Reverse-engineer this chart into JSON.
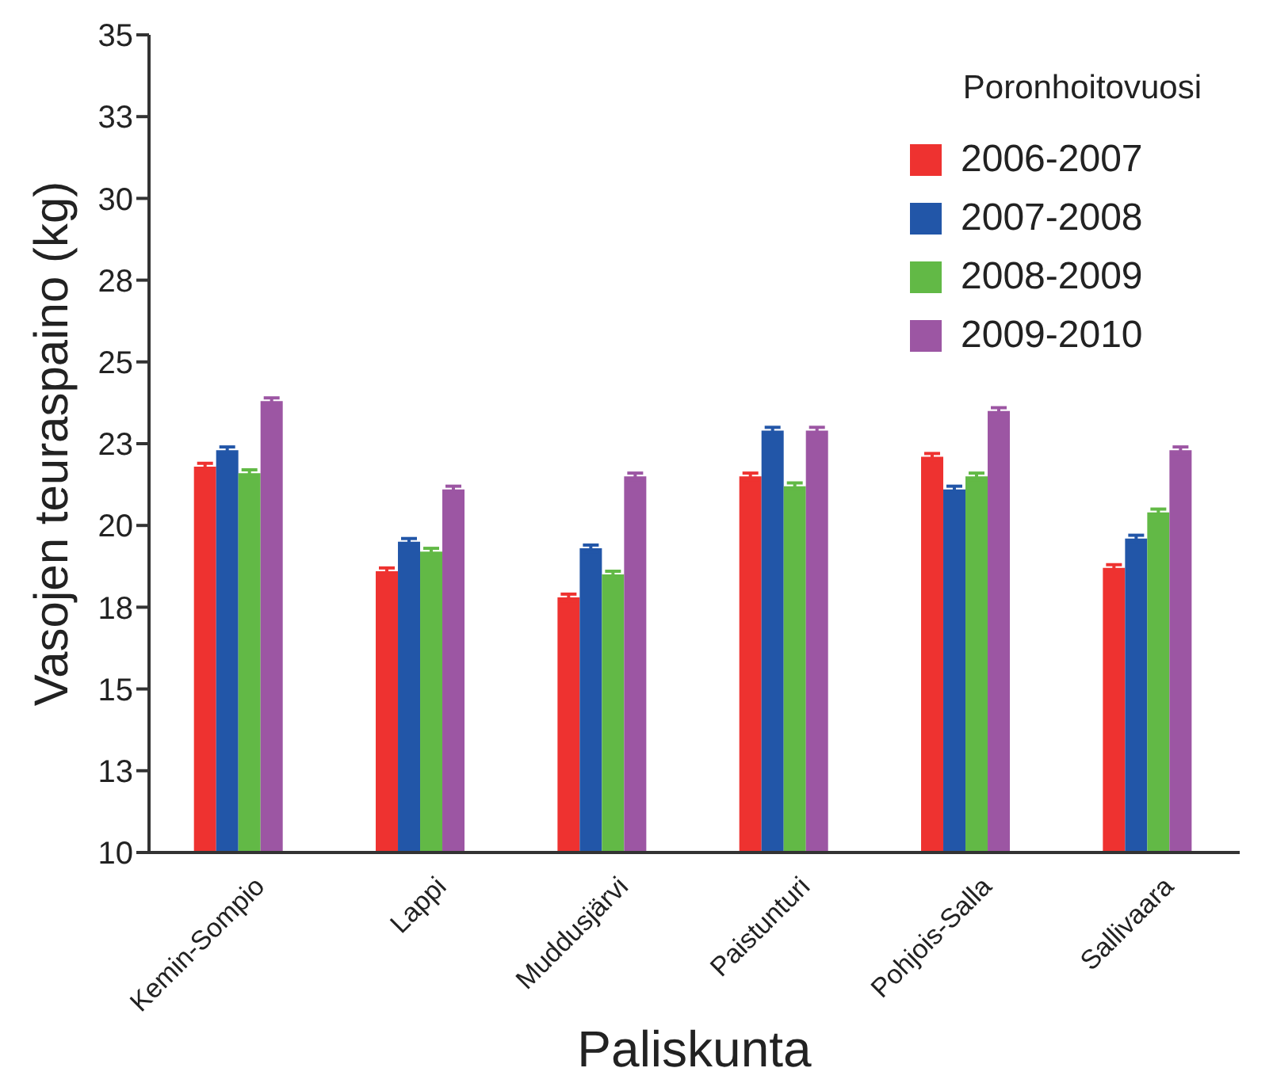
{
  "chart_data": {
    "type": "bar",
    "xlabel": "Paliskunta",
    "ylabel": "Vasojen teuraspaino (kg)",
    "legend_title": "Poronhoitovuosi",
    "legend": "top right",
    "categories": [
      "Kemin-Sompio",
      "Lappi",
      "Muddusjärvi",
      "Paistunturi",
      "Pohjois-Salla",
      "Sallivaara"
    ],
    "ylim": [
      10,
      35
    ],
    "yticks": [
      10,
      {
        "value": 12.5,
        "label": "13"
      },
      15,
      {
        "value": 17.5,
        "label": "18"
      },
      20,
      {
        "value": 22.5,
        "label": "23"
      },
      25,
      {
        "value": 27.5,
        "label": "28"
      },
      30,
      {
        "value": 32.5,
        "label": "33"
      },
      35
    ],
    "series": [
      {
        "name": "2006-2007",
        "color": "#ee3230",
        "values": [
          21.8,
          18.6,
          17.8,
          21.5,
          22.1,
          18.7
        ],
        "errors": [
          0.1,
          0.1,
          0.1,
          0.1,
          0.1,
          0.1
        ]
      },
      {
        "name": "2007-2008",
        "color": "#2256a8",
        "values": [
          22.3,
          19.5,
          19.3,
          22.9,
          21.1,
          19.6
        ],
        "errors": [
          0.1,
          0.1,
          0.1,
          0.1,
          0.1,
          0.1
        ]
      },
      {
        "name": "2008-2009",
        "color": "#62b946",
        "values": [
          21.6,
          19.2,
          18.5,
          21.2,
          21.5,
          20.4
        ],
        "errors": [
          0.1,
          0.1,
          0.1,
          0.1,
          0.1,
          0.1
        ]
      },
      {
        "name": "2009-2010",
        "color": "#9c56a3",
        "values": [
          23.8,
          21.1,
          21.5,
          22.9,
          23.5,
          22.3
        ],
        "errors": [
          0.1,
          0.1,
          0.1,
          0.1,
          0.1,
          0.1
        ]
      }
    ]
  }
}
